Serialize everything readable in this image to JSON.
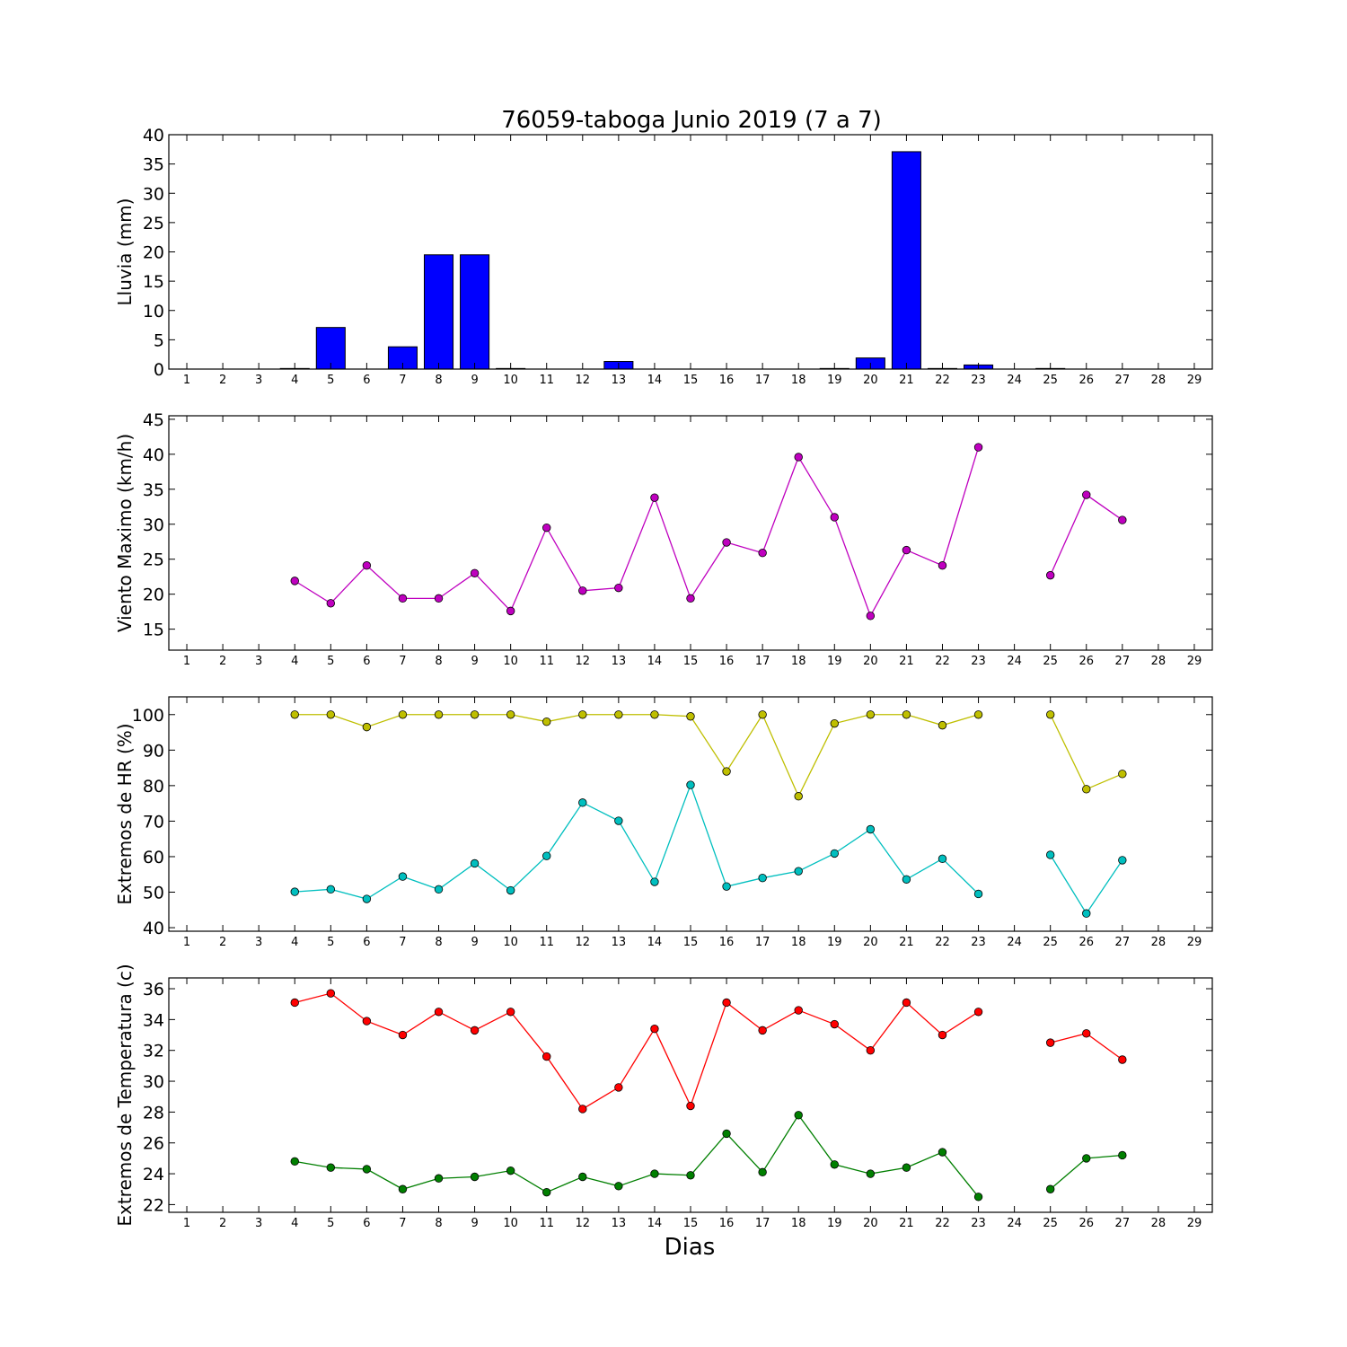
{
  "figure": {
    "title": "76059-taboga Junio 2019  (7 a 7)",
    "xlabel": "Dias"
  },
  "chart_data": [
    {
      "type": "bar",
      "ylabel": "Lluvia (mm)",
      "x": [
        1,
        2,
        3,
        4,
        5,
        6,
        7,
        8,
        9,
        10,
        11,
        12,
        13,
        14,
        15,
        16,
        17,
        18,
        19,
        20,
        21,
        22,
        23,
        24,
        25,
        26,
        27,
        28,
        29
      ],
      "values": [
        0,
        0,
        0,
        0.1,
        7.1,
        0,
        3.8,
        19.5,
        19.5,
        0.1,
        0,
        0,
        1.3,
        0,
        0,
        0,
        0,
        0,
        0.1,
        1.9,
        37.1,
        0.1,
        0.7,
        0,
        0.1,
        0,
        0,
        0,
        0
      ],
      "color": "#0000ff",
      "xlim": [
        0.5,
        29.5
      ],
      "ylim": [
        0,
        40
      ],
      "yticks": [
        0,
        5,
        10,
        15,
        20,
        25,
        30,
        35,
        40
      ],
      "xticks": [
        1,
        2,
        3,
        4,
        5,
        6,
        7,
        8,
        9,
        10,
        11,
        12,
        13,
        14,
        15,
        16,
        17,
        18,
        19,
        20,
        21,
        22,
        23,
        24,
        25,
        26,
        27,
        28,
        29
      ]
    },
    {
      "type": "line",
      "ylabel": "Viento Maximo (km/h)",
      "series": [
        {
          "color": "#bf00bf",
          "x": [
            4,
            5,
            6,
            7,
            8,
            9,
            10,
            11,
            12,
            13,
            14,
            15,
            16,
            17,
            18,
            19,
            20,
            21,
            22,
            23,
            24,
            25,
            26,
            27
          ],
          "values": [
            21.9,
            18.7,
            24.1,
            19.4,
            19.4,
            23.0,
            17.6,
            29.5,
            20.5,
            20.9,
            33.8,
            19.4,
            27.4,
            25.9,
            39.6,
            31.0,
            16.9,
            26.3,
            24.1,
            41.0,
            null,
            22.7,
            34.2,
            30.6
          ]
        }
      ],
      "xlim": [
        0.5,
        29.5
      ],
      "ylim": [
        12,
        45.5
      ],
      "yticks": [
        15,
        20,
        25,
        30,
        35,
        40,
        45
      ],
      "xticks": [
        1,
        2,
        3,
        4,
        5,
        6,
        7,
        8,
        9,
        10,
        11,
        12,
        13,
        14,
        15,
        16,
        17,
        18,
        19,
        20,
        21,
        22,
        23,
        24,
        25,
        26,
        27,
        28,
        29
      ]
    },
    {
      "type": "line",
      "ylabel": "Extremos de HR (%)",
      "series": [
        {
          "color": "#bfbf00",
          "x": [
            4,
            5,
            6,
            7,
            8,
            9,
            10,
            11,
            12,
            13,
            14,
            15,
            16,
            17,
            18,
            19,
            20,
            21,
            22,
            23,
            24,
            25,
            26,
            27
          ],
          "values": [
            100,
            100,
            96.5,
            100,
            100,
            100,
            100,
            98,
            100,
            100,
            100,
            99.5,
            84,
            100,
            77,
            97.5,
            100,
            100,
            97,
            100,
            null,
            100,
            79,
            83.3
          ]
        },
        {
          "color": "#00bfbf",
          "x": [
            4,
            5,
            6,
            7,
            8,
            9,
            10,
            11,
            12,
            13,
            14,
            15,
            16,
            17,
            18,
            19,
            20,
            21,
            22,
            23,
            24,
            25,
            26,
            27
          ],
          "values": [
            50.1,
            50.8,
            48.1,
            54.4,
            50.8,
            58.1,
            50.5,
            60.2,
            75.2,
            70.1,
            52.9,
            80.2,
            51.6,
            54,
            55.9,
            60.9,
            67.7,
            53.6,
            59.4,
            49.5,
            null,
            60.5,
            44,
            59
          ]
        }
      ],
      "xlim": [
        0.5,
        29.5
      ],
      "ylim": [
        39,
        105
      ],
      "yticks": [
        40,
        50,
        60,
        70,
        80,
        90,
        100
      ],
      "xticks": [
        1,
        2,
        3,
        4,
        5,
        6,
        7,
        8,
        9,
        10,
        11,
        12,
        13,
        14,
        15,
        16,
        17,
        18,
        19,
        20,
        21,
        22,
        23,
        24,
        25,
        26,
        27,
        28,
        29
      ]
    },
    {
      "type": "line",
      "ylabel": "Extremos de Temperatura (c)",
      "series": [
        {
          "color": "#ff0000",
          "x": [
            4,
            5,
            6,
            7,
            8,
            9,
            10,
            11,
            12,
            13,
            14,
            15,
            16,
            17,
            18,
            19,
            20,
            21,
            22,
            23,
            24,
            25,
            26,
            27
          ],
          "values": [
            35.1,
            35.7,
            33.9,
            33.0,
            34.5,
            33.3,
            34.5,
            31.6,
            28.2,
            29.6,
            33.4,
            28.4,
            35.1,
            33.3,
            34.6,
            33.7,
            32.0,
            35.1,
            33.0,
            34.5,
            null,
            32.5,
            33.1,
            31.4
          ]
        },
        {
          "color": "#007f00",
          "x": [
            4,
            5,
            6,
            7,
            8,
            9,
            10,
            11,
            12,
            13,
            14,
            15,
            16,
            17,
            18,
            19,
            20,
            21,
            22,
            23,
            24,
            25,
            26,
            27
          ],
          "values": [
            24.8,
            24.4,
            24.3,
            23.0,
            23.7,
            23.8,
            24.2,
            22.8,
            23.8,
            23.2,
            24.0,
            23.9,
            26.6,
            24.1,
            27.8,
            24.6,
            24.0,
            24.4,
            25.4,
            22.5,
            null,
            23.0,
            25.0,
            25.2
          ]
        }
      ],
      "xlim": [
        0.5,
        29.5
      ],
      "ylim": [
        21.5,
        36.7
      ],
      "yticks": [
        22,
        24,
        26,
        28,
        30,
        32,
        34,
        36
      ],
      "xticks": [
        1,
        2,
        3,
        4,
        5,
        6,
        7,
        8,
        9,
        10,
        11,
        12,
        13,
        14,
        15,
        16,
        17,
        18,
        19,
        20,
        21,
        22,
        23,
        24,
        25,
        26,
        27,
        28,
        29
      ]
    }
  ]
}
